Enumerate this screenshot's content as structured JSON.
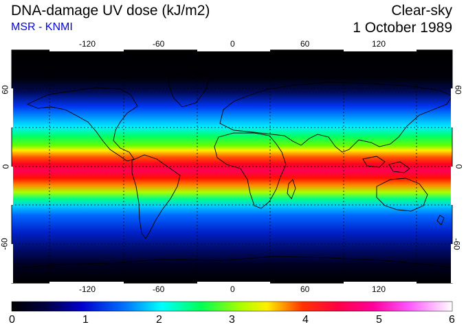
{
  "header": {
    "title": "DNA-damage UV dose (kJ/m2)",
    "subtitle": "MSR - KNMI",
    "scenario": "Clear-sky",
    "date": "1 October 1989"
  },
  "map": {
    "lon_ticks": [
      "-120",
      "-60",
      "0",
      "60",
      "120"
    ],
    "lat_ticks": [
      "60",
      "0",
      "-60"
    ],
    "lon_range": [
      -180,
      180
    ],
    "lat_range": [
      -90,
      90
    ],
    "grid": "dotted 30°",
    "band_peak_lat": 0
  },
  "colorbar": {
    "labels": [
      "0",
      "1",
      "2",
      "3",
      "4",
      "5",
      "6"
    ],
    "min": 0,
    "max": 6,
    "colors": [
      "#000000",
      "#0000cc",
      "#0088ff",
      "#00ffff",
      "#00ff44",
      "#ffff00",
      "#ff0000",
      "#ff0088",
      "#ff44ff",
      "#ffffff"
    ]
  }
}
